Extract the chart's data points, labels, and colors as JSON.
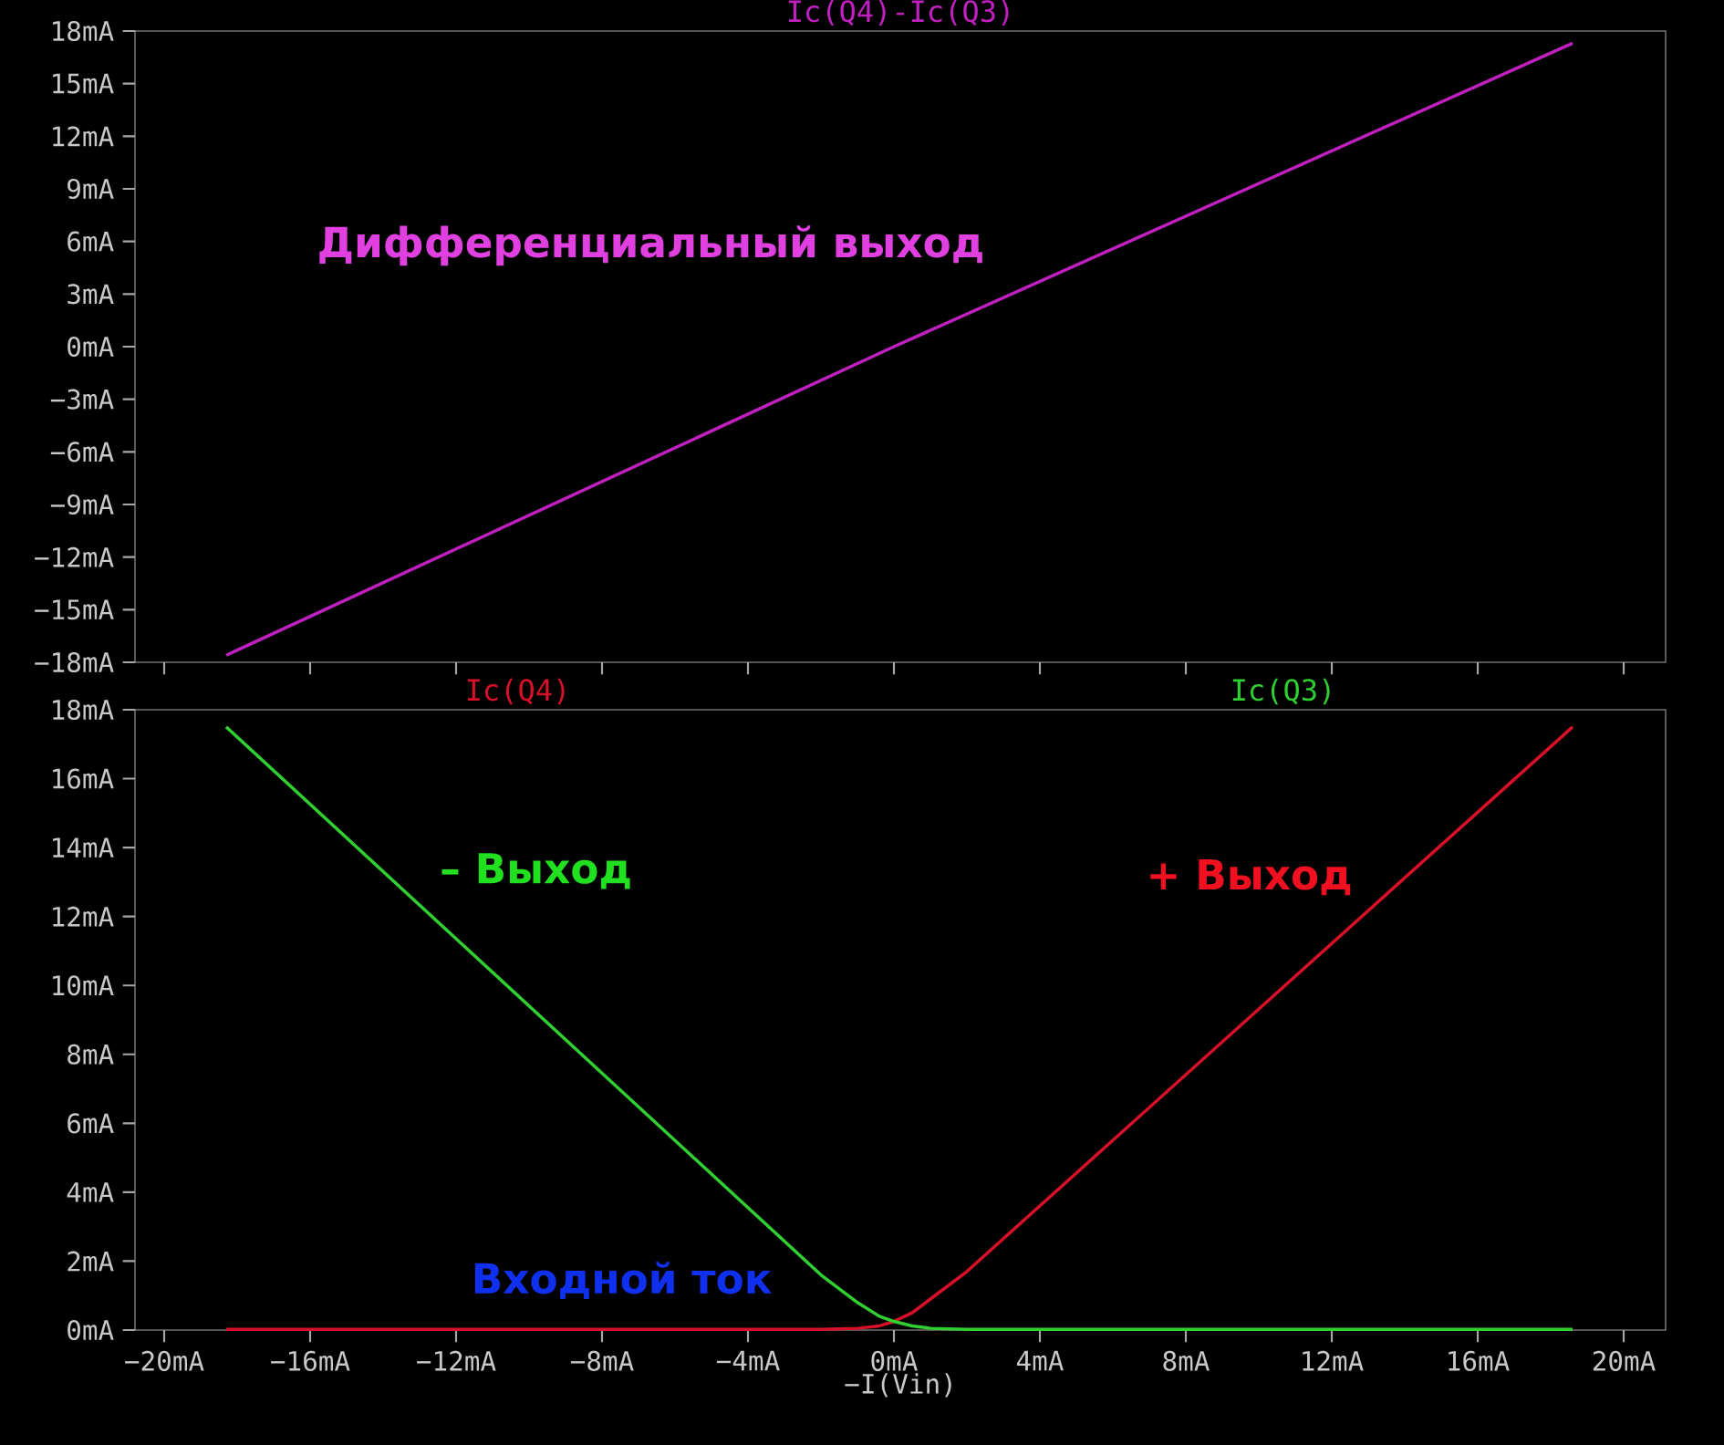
{
  "chart_data": [
    {
      "type": "line",
      "x": [
        -18.3,
        0,
        18.6
      ],
      "series": [
        {
          "name": "Ic(Q4)-Ic(Q3)",
          "color": "#c020c0",
          "values": [
            -17.6,
            0,
            17.3
          ]
        }
      ],
      "xlim": [
        -20.8,
        21.15
      ],
      "ylim": [
        -18,
        18
      ],
      "xticks": [
        {
          "value": -20,
          "label": null
        },
        {
          "value": -16,
          "label": null
        },
        {
          "value": -12,
          "label": null
        },
        {
          "value": -8,
          "label": null
        },
        {
          "value": -4,
          "label": null
        },
        {
          "value": 0,
          "label": null
        },
        {
          "value": 4,
          "label": null
        },
        {
          "value": 8,
          "label": null
        },
        {
          "value": 12,
          "label": null
        },
        {
          "value": 16,
          "label": null
        },
        {
          "value": 20,
          "label": null
        }
      ],
      "yticks": [
        {
          "value": 18,
          "label": "18mA"
        },
        {
          "value": 15,
          "label": "15mA"
        },
        {
          "value": 12,
          "label": "12mA"
        },
        {
          "value": 9,
          "label": "9mA"
        },
        {
          "value": 6,
          "label": "6mA"
        },
        {
          "value": 3,
          "label": "3mA"
        },
        {
          "value": 0,
          "label": "0mA"
        },
        {
          "value": -3,
          "label": "−3mA"
        },
        {
          "value": -6,
          "label": "−6mA"
        },
        {
          "value": -9,
          "label": "−9mA"
        },
        {
          "value": -12,
          "label": "−12mA"
        },
        {
          "value": -15,
          "label": "−15mA"
        },
        {
          "value": -18,
          "label": "−18mA"
        }
      ],
      "tick_labels": "y",
      "legend": "top",
      "line_style": "solid",
      "annotations": [
        "Дифференциальный выход"
      ]
    },
    {
      "type": "line",
      "x": [
        -18.3,
        -2,
        -1,
        -0.4,
        0,
        0.5,
        1,
        2,
        18.6
      ],
      "series": [
        {
          "name": "Ic(Q4)",
          "color": "#d81028",
          "values": [
            0.02,
            0.02,
            0.05,
            0.12,
            0.25,
            0.5,
            0.9,
            1.7,
            17.5
          ]
        },
        {
          "name": "Ic(Q3)",
          "color": "#30d030",
          "values": [
            17.5,
            1.6,
            0.8,
            0.4,
            0.25,
            0.12,
            0.05,
            0.02,
            0.02
          ]
        }
      ],
      "xlim": [
        -20.8,
        21.15
      ],
      "ylim": [
        0,
        18
      ],
      "xticks": [
        {
          "value": -20,
          "label": "−20mA"
        },
        {
          "value": -16,
          "label": "−16mA"
        },
        {
          "value": -12,
          "label": "−12mA"
        },
        {
          "value": -8,
          "label": "−8mA"
        },
        {
          "value": -4,
          "label": "−4mA"
        },
        {
          "value": 0,
          "label": "0mA"
        },
        {
          "value": 4,
          "label": "4mA"
        },
        {
          "value": 8,
          "label": "8mA"
        },
        {
          "value": 12,
          "label": "12mA"
        },
        {
          "value": 16,
          "label": "16mA"
        },
        {
          "value": 20,
          "label": "20mA"
        }
      ],
      "yticks": [
        {
          "value": 0,
          "label": "0mA"
        },
        {
          "value": 2,
          "label": "2mA"
        },
        {
          "value": 4,
          "label": "4mA"
        },
        {
          "value": 6,
          "label": "6mA"
        },
        {
          "value": 8,
          "label": "8mA"
        },
        {
          "value": 10,
          "label": "10mA"
        },
        {
          "value": 12,
          "label": "12mA"
        },
        {
          "value": 14,
          "label": "14mA"
        },
        {
          "value": 16,
          "label": "16mA"
        },
        {
          "value": 18,
          "label": "18mA"
        }
      ],
      "xlabel": "−I(Vin)",
      "legend": "top",
      "line_style": "solid",
      "annotations": [
        "– Выход",
        "+ Выход",
        "Входной ток"
      ]
    }
  ]
}
